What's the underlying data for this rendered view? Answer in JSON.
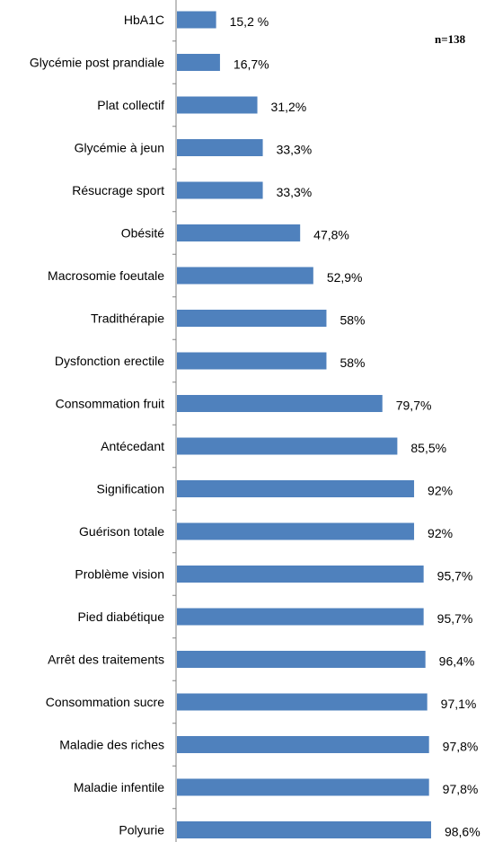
{
  "chart_data": {
    "type": "bar",
    "orientation": "horizontal",
    "categories": [
      "HbA1C",
      "Glycémie post prandiale",
      "Plat collectif",
      "Glycémie à jeun",
      "Résucrage sport",
      "Obésité",
      "Macrosomie foeutale",
      "Tradithérapie",
      "Dysfonction erectile",
      "Consommation fruit",
      "Antécedant",
      "Signification",
      "Guérison totale",
      "Problème vision",
      "Pied diabétique",
      "Arrêt des traitements",
      "Consommation sucre",
      "Maladie des riches",
      "Maladie infentile",
      "Polyurie"
    ],
    "values": [
      15.2,
      16.7,
      31.2,
      33.3,
      33.3,
      47.8,
      52.9,
      58,
      58,
      79.7,
      85.5,
      92,
      92,
      95.7,
      95.7,
      96.4,
      97.1,
      97.8,
      97.8,
      98.6
    ],
    "value_labels": [
      "15,2 %",
      "16,7%",
      "31,2%",
      "33,3%",
      "33,3%",
      "47,8%",
      "52,9%",
      "58%",
      "58%",
      "79,7%",
      "85,5%",
      "92%",
      "92%",
      "95,7%",
      "95,7%",
      "96,4%",
      "97,1%",
      "97,8%",
      "97,8%",
      "98,6%"
    ],
    "xlim": [
      0,
      100
    ],
    "bar_color": "#4f81bd",
    "annotation": "n=138",
    "grid": false
  }
}
